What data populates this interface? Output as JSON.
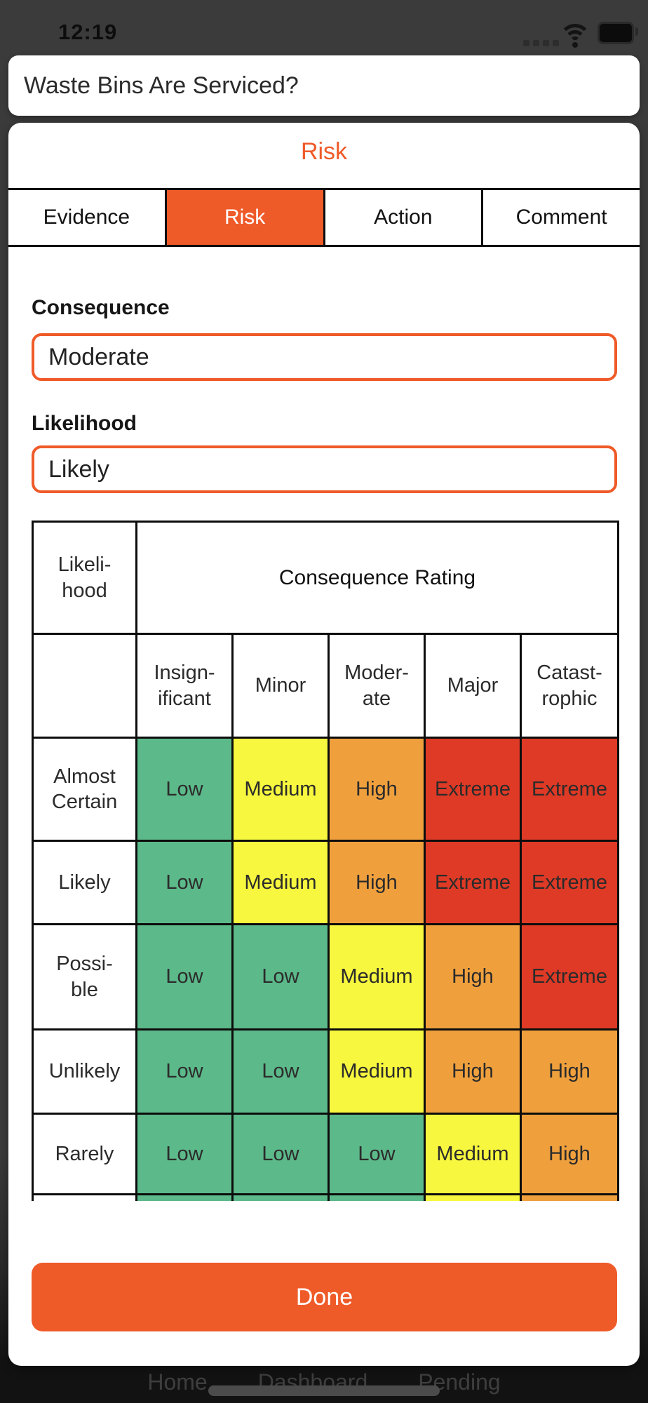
{
  "colors": {
    "accent": "#ef5a29",
    "low": "#5cb98a",
    "medium": "#f7f73f",
    "high": "#efa03d",
    "extreme": "#de3a26",
    "table_border": "#0c0c0c"
  },
  "status_bar": {
    "time": "12:19",
    "icons": [
      "cellular-signal-icon",
      "wifi-icon",
      "battery-icon"
    ]
  },
  "question_card": {
    "title": "Waste Bins Are Serviced?"
  },
  "sheet": {
    "title": "Risk",
    "tabs": [
      {
        "label": "Evidence",
        "active": false
      },
      {
        "label": "Risk",
        "active": true
      },
      {
        "label": "Action",
        "active": false
      },
      {
        "label": "Comment",
        "active": false
      }
    ],
    "fields": [
      {
        "key": "consequence",
        "label": "Consequence",
        "value": "Moderate"
      },
      {
        "key": "likelihood",
        "label": "Likelihood",
        "value": "Likely"
      }
    ],
    "done_label": "Done"
  },
  "matrix": {
    "corner_header": "Likeli-\nhood",
    "group_header": "Consequence Rating",
    "col_headers": [
      "Insign-\nificant",
      "Minor",
      "Moder-\nate",
      "Major",
      "Catast-\nrophic"
    ],
    "rows": [
      {
        "label": "Almost\nCertain",
        "cells": [
          {
            "text": "Low",
            "level": "low"
          },
          {
            "text": "Medium",
            "level": "medium"
          },
          {
            "text": "High",
            "level": "high"
          },
          {
            "text": "Extreme",
            "level": "extreme"
          },
          {
            "text": "Extreme",
            "level": "extreme"
          }
        ]
      },
      {
        "label": "Likely",
        "cells": [
          {
            "text": "Low",
            "level": "low"
          },
          {
            "text": "Medium",
            "level": "medium"
          },
          {
            "text": "High",
            "level": "high"
          },
          {
            "text": "Extreme",
            "level": "extreme"
          },
          {
            "text": "Extreme",
            "level": "extreme"
          }
        ]
      },
      {
        "label": "Possi-\nble",
        "cells": [
          {
            "text": "Low",
            "level": "low"
          },
          {
            "text": "Low",
            "level": "low"
          },
          {
            "text": "Medium",
            "level": "medium"
          },
          {
            "text": "High",
            "level": "high"
          },
          {
            "text": "Extreme",
            "level": "extreme"
          }
        ]
      },
      {
        "label": "Unlikely",
        "cells": [
          {
            "text": "Low",
            "level": "low"
          },
          {
            "text": "Low",
            "level": "low"
          },
          {
            "text": "Medium",
            "level": "medium"
          },
          {
            "text": "High",
            "level": "high"
          },
          {
            "text": "High",
            "level": "high"
          }
        ]
      },
      {
        "label": "Rarely",
        "cells": [
          {
            "text": "Low",
            "level": "low"
          },
          {
            "text": "Low",
            "level": "low"
          },
          {
            "text": "Low",
            "level": "low"
          },
          {
            "text": "Medium",
            "level": "medium"
          },
          {
            "text": "High",
            "level": "high"
          }
        ]
      }
    ],
    "clipped_row_levels": [
      "low",
      "low",
      "low",
      "medium",
      "high"
    ]
  },
  "bottom_nav": {
    "items": [
      "Home",
      "Dashboard",
      "Pending"
    ]
  }
}
